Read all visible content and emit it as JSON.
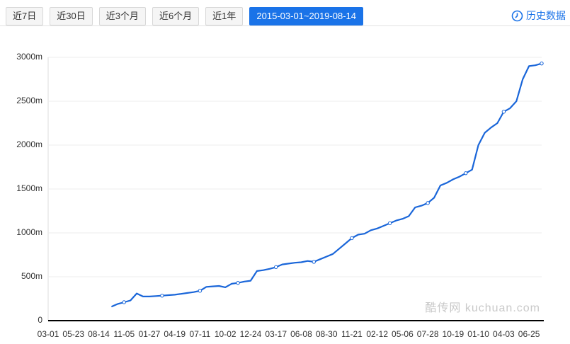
{
  "tabs": [
    "近7日",
    "近30日",
    "近3个月",
    "近6个月",
    "近1年",
    "2015-03-01~2019-08-14"
  ],
  "active_tab": 5,
  "history_link": "历史数据",
  "chart_data": {
    "type": "line",
    "watermark": "酷传网 kuchuan.com",
    "color": "#1a66d9",
    "grid": true,
    "categories": [
      "03-01",
      null,
      null,
      null,
      "05-23",
      null,
      null,
      null,
      "08-14",
      null,
      null,
      null,
      "11-05",
      null,
      null,
      null,
      "01-27",
      null,
      null,
      null,
      "04-19",
      null,
      null,
      null,
      "07-11",
      null,
      null,
      null,
      "10-02",
      null,
      null,
      null,
      "12-24",
      null,
      null,
      null,
      "03-17",
      null,
      null,
      null,
      "06-08",
      null,
      null,
      null,
      "08-30",
      null,
      null,
      null,
      "11-21",
      null,
      null,
      null,
      "02-12",
      null,
      null,
      null,
      "05-06",
      null,
      null,
      null,
      "07-28",
      null,
      null,
      null,
      "10-19",
      null,
      null,
      null,
      "01-10",
      null,
      null,
      null,
      "04-03",
      null,
      null,
      null,
      "06-25",
      null,
      null
    ],
    "values": [
      null,
      null,
      null,
      null,
      null,
      null,
      null,
      null,
      null,
      null,
      160,
      190,
      210,
      230,
      310,
      275,
      275,
      280,
      285,
      290,
      295,
      305,
      315,
      325,
      340,
      385,
      390,
      395,
      380,
      420,
      430,
      445,
      455,
      565,
      575,
      590,
      610,
      640,
      650,
      660,
      665,
      680,
      670,
      700,
      730,
      760,
      820,
      880,
      940,
      980,
      990,
      1030,
      1050,
      1080,
      1110,
      1140,
      1160,
      1190,
      1290,
      1310,
      1340,
      1400,
      1540,
      1570,
      1610,
      1640,
      1680,
      1720,
      2000,
      2140,
      2200,
      2250,
      2380,
      2420,
      2500,
      2750,
      2900,
      2910,
      2930
    ],
    "ylim": [
      0,
      3000
    ],
    "yticks": [
      0,
      {
        "value": 500,
        "label": "500m"
      },
      {
        "value": 1000,
        "label": "1000m"
      },
      {
        "value": 1500,
        "label": "1500m"
      },
      {
        "value": 2000,
        "label": "2000m"
      },
      {
        "value": 2500,
        "label": "2500m"
      },
      {
        "value": 3000,
        "label": "3000m"
      }
    ]
  }
}
